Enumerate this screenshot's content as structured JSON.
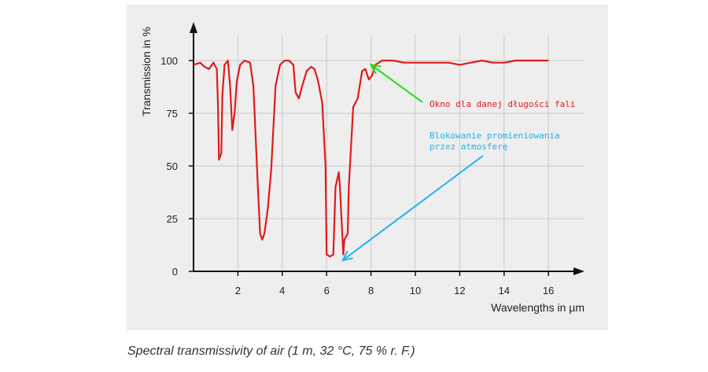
{
  "caption": "Spectral transmissivity of air (1 m, 32 °C, 75 % r. F.)",
  "colors": {
    "panel_bg": "#eeeeee",
    "series": "#e01b1b",
    "green_annotation": "#22dd11",
    "blue_annotation": "#1fb2ee",
    "red_annotation_text": "#e01b1b",
    "axis": "#111111",
    "grid": "#c9c9c9"
  },
  "chart_data": {
    "type": "line",
    "title": "",
    "xlabel": "Wavelengths in µm",
    "ylabel": "Transmission in %",
    "xlim": [
      0,
      17.5
    ],
    "ylim": [
      0,
      100
    ],
    "x_ticks": [
      2,
      4,
      6,
      8,
      10,
      12,
      14,
      16
    ],
    "y_ticks": [
      0,
      25,
      50,
      75,
      100
    ],
    "grid": true,
    "series": [
      {
        "color": "#e01b1b",
        "points": [
          [
            0.0,
            98
          ],
          [
            0.3,
            99
          ],
          [
            0.5,
            97
          ],
          [
            0.7,
            96
          ],
          [
            0.9,
            99
          ],
          [
            1.05,
            96
          ],
          [
            1.1,
            80
          ],
          [
            1.15,
            53
          ],
          [
            1.25,
            56
          ],
          [
            1.3,
            84
          ],
          [
            1.4,
            98
          ],
          [
            1.55,
            100
          ],
          [
            1.65,
            88
          ],
          [
            1.75,
            67
          ],
          [
            1.85,
            75
          ],
          [
            1.95,
            90
          ],
          [
            2.1,
            98
          ],
          [
            2.3,
            100
          ],
          [
            2.55,
            99
          ],
          [
            2.7,
            88
          ],
          [
            2.9,
            40
          ],
          [
            3.0,
            18
          ],
          [
            3.1,
            15
          ],
          [
            3.2,
            18
          ],
          [
            3.35,
            30
          ],
          [
            3.5,
            48
          ],
          [
            3.7,
            88
          ],
          [
            3.9,
            98
          ],
          [
            4.1,
            100
          ],
          [
            4.3,
            100
          ],
          [
            4.5,
            98
          ],
          [
            4.6,
            85
          ],
          [
            4.75,
            82
          ],
          [
            4.9,
            88
          ],
          [
            5.1,
            95
          ],
          [
            5.3,
            97
          ],
          [
            5.45,
            96
          ],
          [
            5.6,
            91
          ],
          [
            5.8,
            80
          ],
          [
            5.95,
            50
          ],
          [
            6.0,
            8
          ],
          [
            6.15,
            7
          ],
          [
            6.3,
            8
          ],
          [
            6.4,
            40
          ],
          [
            6.55,
            47
          ],
          [
            6.6,
            40
          ],
          [
            6.75,
            8
          ],
          [
            6.8,
            15
          ],
          [
            6.95,
            18
          ],
          [
            7.0,
            40
          ],
          [
            7.2,
            78
          ],
          [
            7.4,
            82
          ],
          [
            7.6,
            95
          ],
          [
            7.75,
            96
          ],
          [
            7.9,
            91
          ],
          [
            8.05,
            93
          ],
          [
            8.2,
            98
          ],
          [
            8.5,
            100
          ],
          [
            9.0,
            100
          ],
          [
            9.5,
            99
          ],
          [
            10.0,
            99
          ],
          [
            10.5,
            99
          ],
          [
            11.0,
            99
          ],
          [
            11.5,
            99
          ],
          [
            12.0,
            98
          ],
          [
            12.5,
            99
          ],
          [
            13.0,
            100
          ],
          [
            13.5,
            99
          ],
          [
            14.0,
            99
          ],
          [
            14.5,
            100
          ],
          [
            15.0,
            100
          ],
          [
            15.5,
            100
          ],
          [
            16.0,
            100
          ]
        ]
      }
    ],
    "annotations": [
      {
        "text": "Okno dla danej długości fali",
        "color": "#e01b1b",
        "arrow_color": "#22dd11",
        "arrow_target": [
          8.0,
          98
        ]
      },
      {
        "lines": [
          "Blokowanie promieniowania",
          "przez atmosferę"
        ],
        "color": "#1fb2ee",
        "arrow_color": "#1fb2ee",
        "arrow_target": [
          6.8,
          6
        ]
      }
    ]
  }
}
